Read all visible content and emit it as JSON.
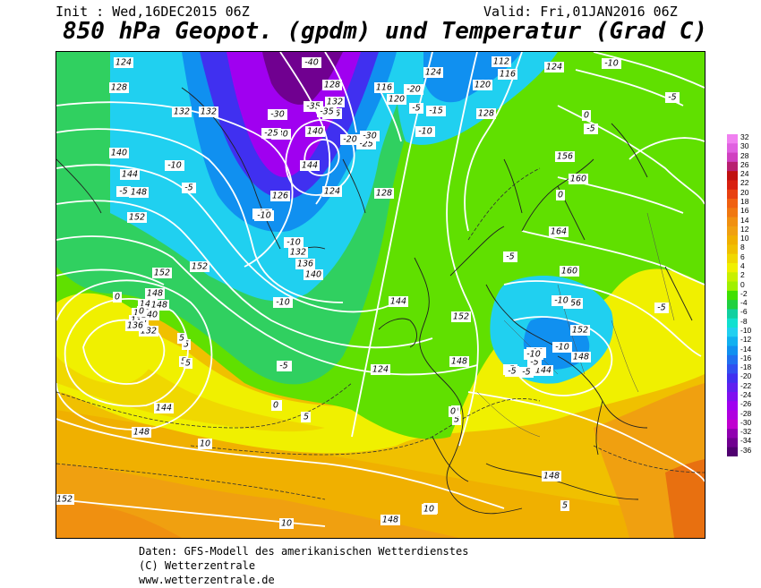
{
  "header": {
    "init": "Init : Wed,16DEC2015 06Z",
    "valid": "Valid: Fri,01JAN2016 06Z",
    "title": "850 hPa Geopot. (gpdm) und Temperatur (Grad C)"
  },
  "colors": {
    "32": "#f080f0",
    "30": "#e060e0",
    "28": "#d040c0",
    "26": "#b82070",
    "24": "#c01010",
    "22": "#d82010",
    "20": "#e84010",
    "18": "#f06010",
    "16": "#f07810",
    "14": "#f09010",
    "12": "#f0a010",
    "10": "#f0b000",
    "8": "#f0c000",
    "6": "#f0d800",
    "4": "#f0f000",
    "2": "#c8f000",
    "0": "#a0f000",
    "-2": "#40e000",
    "-4": "#20d040",
    "-6": "#10d0a0",
    "-8": "#10e0d0",
    "-10": "#20d0f0",
    "-12": "#10b0f0",
    "-14": "#1090f0",
    "-16": "#2070f0",
    "-18": "#3050f0",
    "-20": "#4030f0",
    "-22": "#6020f0",
    "-24": "#8010f0",
    "-26": "#a000f0",
    "-28": "#b000e0",
    "-30": "#c000d0",
    "-32": "#9000b0",
    "-34": "#700090",
    "-36": "#500070"
  },
  "colorbar": {
    "labels": [
      "32",
      "30",
      "28",
      "26",
      "24",
      "22",
      "20",
      "18",
      "16",
      "14",
      "12",
      "10",
      "8",
      "6",
      "4",
      "2",
      "0",
      "-2",
      "-4",
      "-6",
      "-8",
      "-10",
      "-12",
      "-14",
      "-16",
      "-18",
      "-20",
      "-22",
      "-24",
      "-26",
      "-28",
      "-30",
      "-32",
      "-34",
      "-36"
    ]
  },
  "geopotential_labels": [
    {
      "text": "124"
    },
    {
      "text": "128"
    },
    {
      "text": "132"
    },
    {
      "text": "132"
    },
    {
      "text": "140"
    },
    {
      "text": "144"
    },
    {
      "text": "148"
    },
    {
      "text": "152"
    },
    {
      "text": "152"
    },
    {
      "text": "152"
    },
    {
      "text": "148"
    },
    {
      "text": "144"
    },
    {
      "text": "140"
    },
    {
      "text": "136"
    },
    {
      "text": "132"
    },
    {
      "text": "144"
    },
    {
      "text": "148"
    },
    {
      "text": "152"
    },
    {
      "text": "128"
    },
    {
      "text": "132"
    },
    {
      "text": "136"
    },
    {
      "text": "140"
    },
    {
      "text": "144"
    },
    {
      "text": "126"
    },
    {
      "text": "124"
    },
    {
      "text": "128"
    },
    {
      "text": "132"
    },
    {
      "text": "136"
    },
    {
      "text": "140"
    },
    {
      "text": "124"
    },
    {
      "text": "116"
    },
    {
      "text": "120"
    },
    {
      "text": "124"
    },
    {
      "text": "124"
    },
    {
      "text": "120"
    },
    {
      "text": "128"
    },
    {
      "text": "116"
    },
    {
      "text": "112"
    },
    {
      "text": "156"
    },
    {
      "text": "160"
    },
    {
      "text": "164"
    },
    {
      "text": "160"
    },
    {
      "text": "156"
    },
    {
      "text": "152"
    },
    {
      "text": "148"
    },
    {
      "text": "144"
    },
    {
      "text": "152"
    },
    {
      "text": "148"
    },
    {
      "text": "144"
    },
    {
      "text": "148"
    },
    {
      "text": "148"
    },
    {
      "text": "148"
    },
    {
      "text": "140"
    },
    {
      "text": "136"
    }
  ],
  "temperature_labels": [
    {
      "text": "-40"
    },
    {
      "text": "-30"
    },
    {
      "text": "-35"
    },
    {
      "text": "-35"
    },
    {
      "text": "-30"
    },
    {
      "text": "-25"
    },
    {
      "text": "-25"
    },
    {
      "text": "-30"
    },
    {
      "text": "-20"
    },
    {
      "text": "-20"
    },
    {
      "text": "-15"
    },
    {
      "text": "-10"
    },
    {
      "text": "-10"
    },
    {
      "text": "-5"
    },
    {
      "text": "-5"
    },
    {
      "text": "-15"
    },
    {
      "text": "-10"
    },
    {
      "text": "-10"
    },
    {
      "text": "-10"
    },
    {
      "text": "-5"
    },
    {
      "text": "0"
    },
    {
      "text": "-5"
    },
    {
      "text": "-5"
    },
    {
      "text": "-10"
    },
    {
      "text": "-5"
    },
    {
      "text": "0"
    },
    {
      "text": "0"
    },
    {
      "text": "0"
    },
    {
      "text": "5"
    },
    {
      "text": "5"
    },
    {
      "text": "0"
    },
    {
      "text": "5"
    },
    {
      "text": "10"
    },
    {
      "text": "10"
    },
    {
      "text": "5"
    },
    {
      "text": "5"
    },
    {
      "text": "0"
    },
    {
      "text": "-5"
    },
    {
      "text": "-5"
    },
    {
      "text": "-10"
    },
    {
      "text": "-10"
    },
    {
      "text": "-5"
    },
    {
      "text": "-5"
    },
    {
      "text": "-5"
    },
    {
      "text": "5"
    },
    {
      "text": "10"
    },
    {
      "text": "10"
    },
    {
      "text": "-5"
    },
    {
      "text": "0"
    },
    {
      "text": "5"
    },
    {
      "text": "-20"
    },
    {
      "text": "-10"
    },
    {
      "text": "-5"
    },
    {
      "text": "0"
    },
    {
      "text": "5"
    },
    {
      "text": "-10"
    },
    {
      "text": "10"
    }
  ],
  "footer": {
    "line1": "Daten: GFS-Modell des amerikanischen Wetterdienstes",
    "line2": "(C) Wetterzentrale",
    "line3": "www.wetterzentrale.de"
  }
}
